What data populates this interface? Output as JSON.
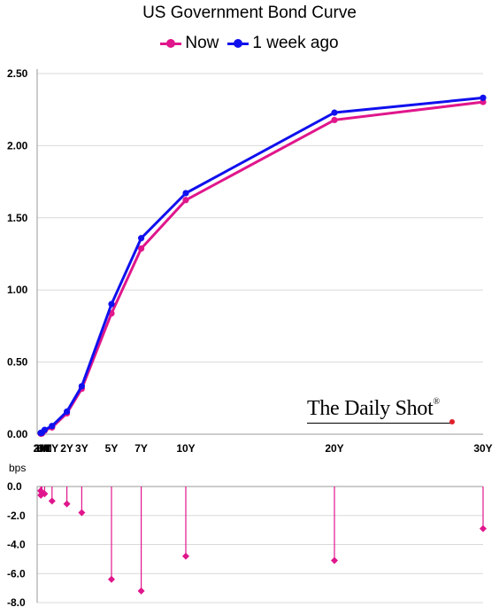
{
  "chart_data": [
    {
      "type": "line",
      "title": "US Government Bond Curve",
      "categories": [
        "1M",
        "2M",
        "3M",
        "6M",
        "1Y",
        "2Y",
        "3Y",
        "5Y",
        "7Y",
        "10Y",
        "20Y",
        "30Y"
      ],
      "x_years": [
        0.083,
        0.167,
        0.25,
        0.5,
        1,
        2,
        3,
        5,
        7,
        10,
        20,
        30
      ],
      "x_ticks": [
        "1M",
        "2M",
        "3M",
        "6M",
        "1Y",
        "2Y",
        "3Y",
        "5Y",
        "7Y",
        "10Y",
        "20Y",
        "30Y"
      ],
      "ylim": [
        0,
        2.5
      ],
      "y_ticks": [
        "0.00",
        "0.50",
        "1.00",
        "1.50",
        "2.00",
        "2.50"
      ],
      "y_tick_values": [
        0,
        0.5,
        1.0,
        1.5,
        2.0,
        2.5
      ],
      "grid": true,
      "legend_position": "top-center",
      "series": [
        {
          "name": "Now",
          "color": "#e0168c",
          "values": [
            0.005,
            0.005,
            0.004,
            0.025,
            0.047,
            0.145,
            0.315,
            0.838,
            1.287,
            1.623,
            2.178,
            2.303
          ]
        },
        {
          "name": "1 week ago",
          "color": "#1010ee",
          "values": [
            0.01,
            0.008,
            0.01,
            0.03,
            0.057,
            0.157,
            0.333,
            0.902,
            1.359,
            1.671,
            2.229,
            2.332
          ]
        }
      ]
    },
    {
      "type": "bar",
      "ylabel": "bps",
      "categories": [
        "1M",
        "2M",
        "3M",
        "6M",
        "1Y",
        "2Y",
        "3Y",
        "5Y",
        "7Y",
        "10Y",
        "20Y",
        "30Y"
      ],
      "ylim": [
        -8.0,
        0.0
      ],
      "y_ticks": [
        "0.0",
        "-2.0",
        "-4.0",
        "-6.0",
        "-8.0"
      ],
      "y_tick_values": [
        0,
        -2,
        -4,
        -6,
        -8
      ],
      "grid": true,
      "color": "#e0168c",
      "values": [
        -0.5,
        -0.3,
        -0.6,
        -0.5,
        -1.0,
        -1.2,
        -1.8,
        -6.4,
        -7.2,
        -4.8,
        -5.1,
        -2.9
      ]
    }
  ],
  "watermark": {
    "text": "The Daily Shot",
    "mark": "®"
  }
}
